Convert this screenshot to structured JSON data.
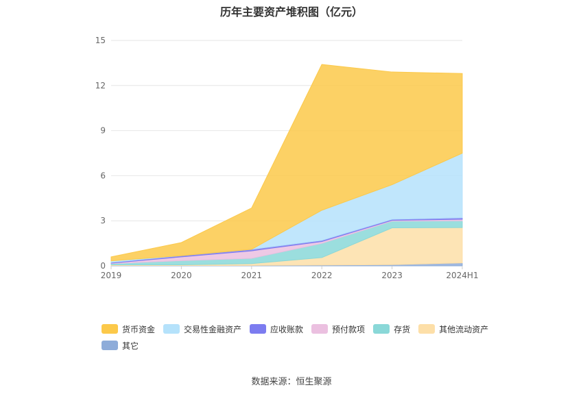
{
  "chart_data": {
    "type": "area",
    "stacked": true,
    "title": "历年主要资产堆积图（亿元）",
    "categories": [
      "2019",
      "2020",
      "2021",
      "2022",
      "2023",
      "2024H1"
    ],
    "ylim": [
      0,
      15
    ],
    "yticks": [
      "0",
      "3",
      "6",
      "9",
      "12",
      "15"
    ],
    "grid": true,
    "legend_position": "bottom",
    "series": [
      {
        "name": "其它",
        "color": "#8eacd9",
        "values": [
          0.02,
          0.02,
          0.03,
          0.05,
          0.08,
          0.2
        ]
      },
      {
        "name": "其他流动资产",
        "color": "#fddfa8",
        "values": [
          0.05,
          0.05,
          0.12,
          0.5,
          2.45,
          2.35
        ]
      },
      {
        "name": "存货",
        "color": "#8ad8d8",
        "values": [
          0.08,
          0.28,
          0.35,
          0.95,
          0.45,
          0.45
        ]
      },
      {
        "name": "预付款项",
        "color": "#ebc0e0",
        "values": [
          0.03,
          0.25,
          0.5,
          0.12,
          0.05,
          0.1
        ]
      },
      {
        "name": "应收账款",
        "color": "#7c7cf0",
        "values": [
          0.05,
          0.08,
          0.1,
          0.08,
          0.07,
          0.1
        ]
      },
      {
        "name": "交易性金融资产",
        "color": "#b5e2fb",
        "values": [
          0.1,
          0.0,
          0.0,
          2.0,
          2.3,
          4.3
        ]
      },
      {
        "name": "货币资金",
        "color": "#fcc94a",
        "values": [
          0.27,
          0.87,
          2.75,
          9.7,
          7.5,
          5.3
        ]
      }
    ]
  },
  "legend": [
    {
      "label": "货币资金",
      "color": "#fcc94a"
    },
    {
      "label": "交易性金融资产",
      "color": "#b5e2fb"
    },
    {
      "label": "应收账款",
      "color": "#7c7cf0"
    },
    {
      "label": "预付款项",
      "color": "#ebc0e0"
    },
    {
      "label": "存货",
      "color": "#8ad8d8"
    },
    {
      "label": "其他流动资产",
      "color": "#fddfa8"
    },
    {
      "label": "其它",
      "color": "#8eacd9"
    }
  ],
  "source": "数据来源：恒生聚源"
}
